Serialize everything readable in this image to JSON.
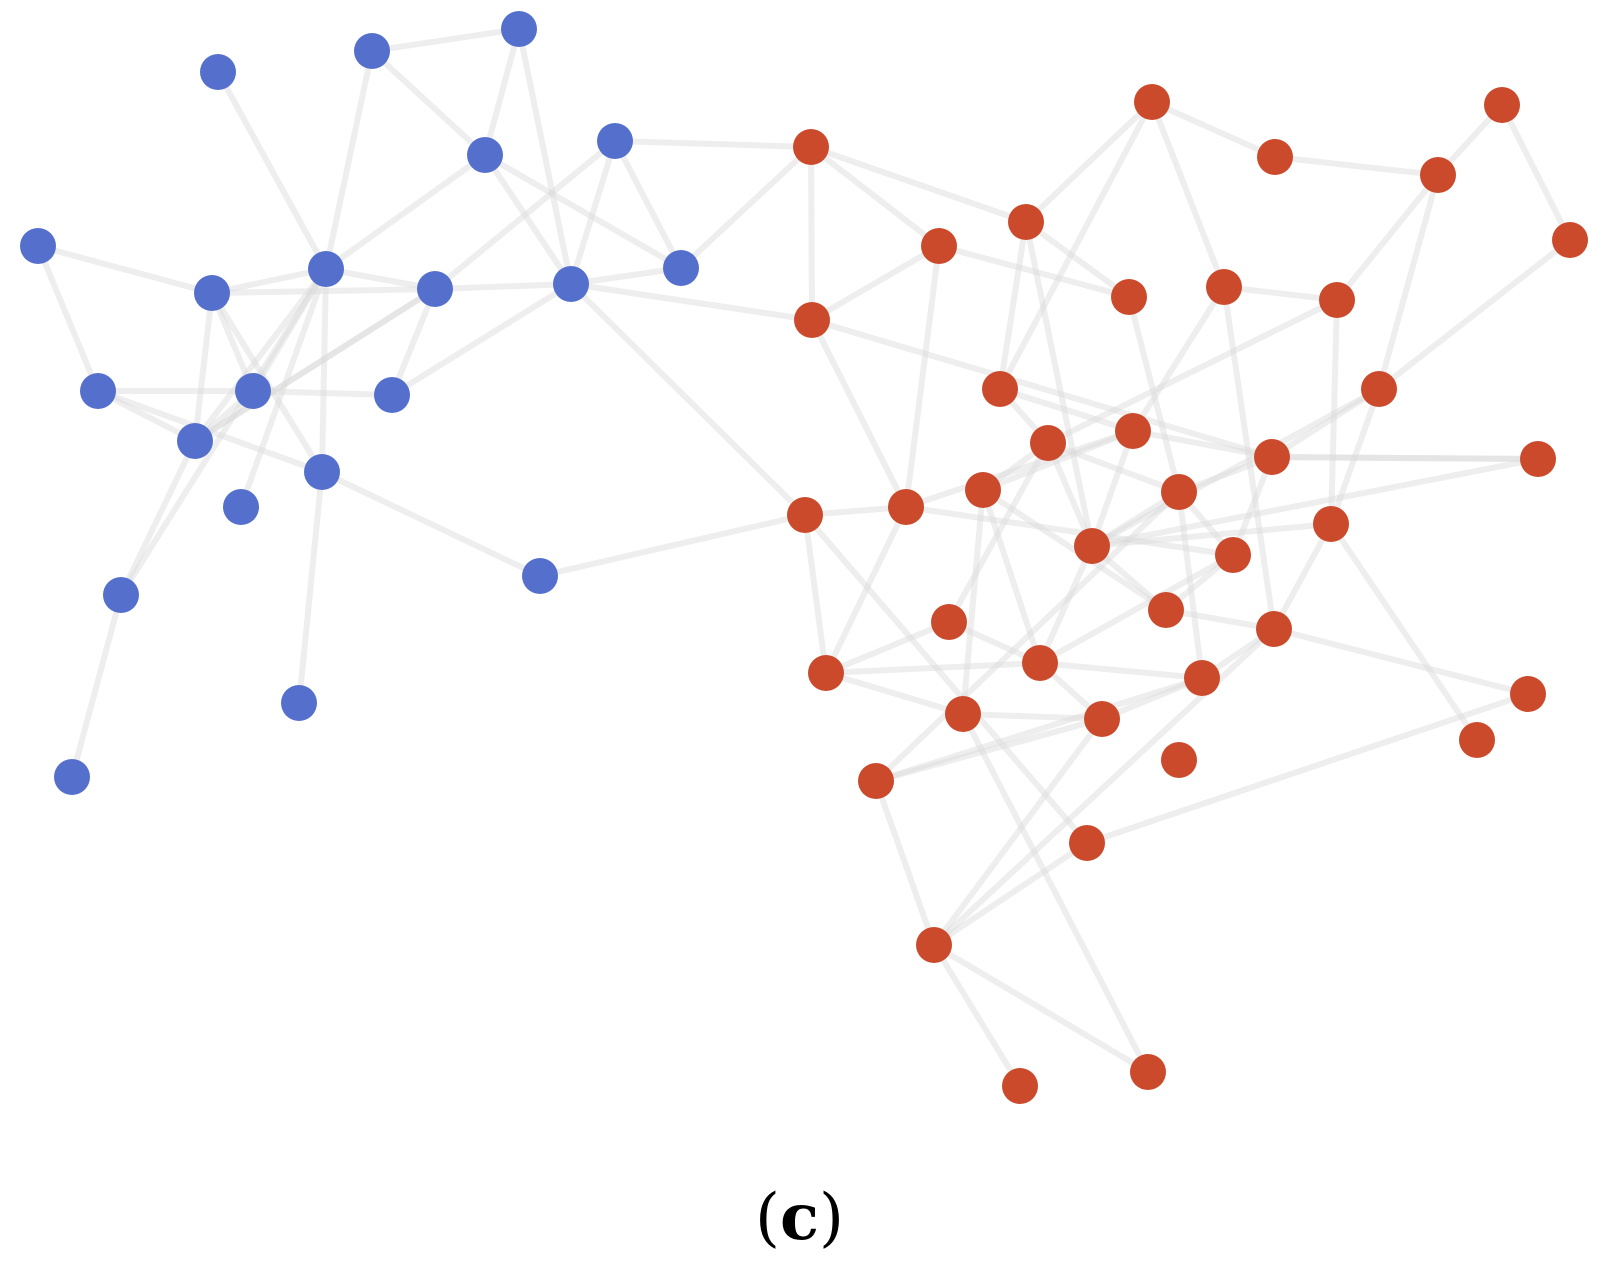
{
  "caption": {
    "open": "(",
    "letter": "c",
    "close": ")"
  },
  "colors": {
    "community_a": "#5570cc",
    "community_b": "#cc4a2c",
    "edge": "#d9d9d9"
  }
}
